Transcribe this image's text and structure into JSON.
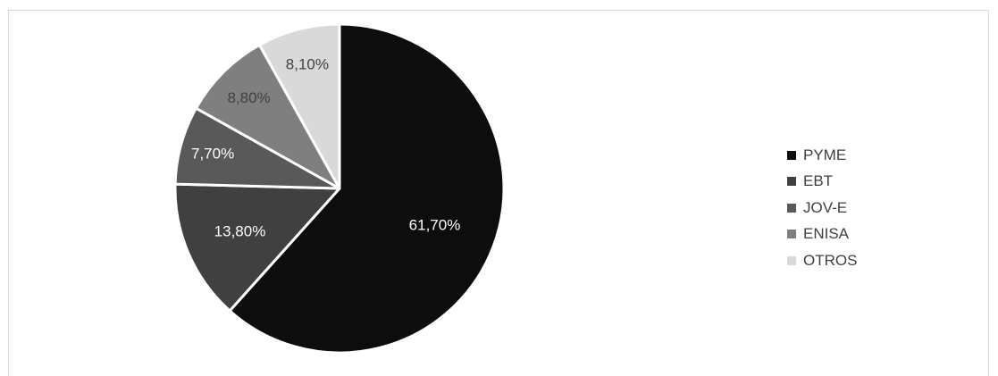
{
  "chart_data": {
    "type": "pie",
    "categories": [
      "PYME",
      "EBT",
      "JOV-E",
      "ENISA",
      "OTROS"
    ],
    "values": [
      61.7,
      13.8,
      7.7,
      8.8,
      8.1
    ],
    "labels": [
      "61,70%",
      "13,80%",
      "7,70%",
      "8,80%",
      "8,10%"
    ],
    "colors": [
      "#0d0d0d",
      "#404040",
      "#595959",
      "#7f7f7f",
      "#d9d9d9"
    ],
    "label_colors": [
      "#ffffff",
      "#ffffff",
      "#ffffff",
      "#404040",
      "#404040"
    ],
    "legend_position": "right",
    "title": ""
  },
  "legend": {
    "items": [
      {
        "label": "PYME",
        "color": "#0d0d0d"
      },
      {
        "label": "EBT",
        "color": "#404040"
      },
      {
        "label": "JOV-E",
        "color": "#595959"
      },
      {
        "label": "ENISA",
        "color": "#7f7f7f"
      },
      {
        "label": "OTROS",
        "color": "#d9d9d9"
      }
    ]
  }
}
